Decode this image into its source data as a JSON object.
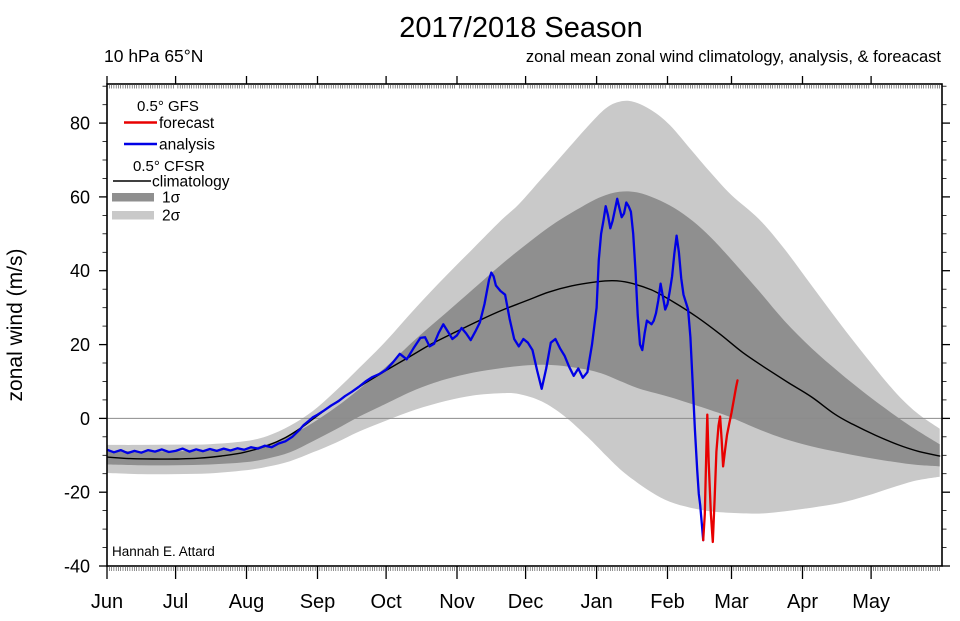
{
  "header": {
    "title": "2017/2018 Season",
    "subtitle_left": "10 hPa 65°N",
    "subtitle_right": "zonal mean zonal wind climatology, analysis, & foreacast"
  },
  "attribution": "Hannah E. Attard",
  "legend": {
    "gfs_header": "0.5° GFS",
    "forecast_label": "forecast",
    "analysis_label": "analysis",
    "cfsr_header": "0.5° CFSR",
    "climatology_label": "climatology",
    "sigma1_label": "1σ",
    "sigma2_label": "2σ"
  },
  "colors": {
    "forecast": "#e80000",
    "analysis": "#0000e6",
    "climatology": "#000000",
    "sigma1": "#8f8f8f",
    "sigma2": "#c9c9c9",
    "zero_line": "#8c8c8c",
    "frame": "#000000"
  },
  "chart_data": {
    "type": "line",
    "title": "2017/2018 Season",
    "xlabel": "",
    "ylabel": "zonal wind (m/s)",
    "x_unit": "days since Jun 1",
    "y_unit": "m/s",
    "xlim": [
      0,
      365
    ],
    "ylim": [
      -40,
      90.6
    ],
    "grid": false,
    "zero_reference_line": 0,
    "x_ticks": [
      {
        "label": "Jun",
        "day": 0
      },
      {
        "label": "Jul",
        "day": 30
      },
      {
        "label": "Aug",
        "day": 61
      },
      {
        "label": "Sep",
        "day": 92
      },
      {
        "label": "Oct",
        "day": 122
      },
      {
        "label": "Nov",
        "day": 153
      },
      {
        "label": "Dec",
        "day": 183
      },
      {
        "label": "Jan",
        "day": 214
      },
      {
        "label": "Feb",
        "day": 245
      },
      {
        "label": "Mar",
        "day": 273
      },
      {
        "label": "Apr",
        "day": 304
      },
      {
        "label": "May",
        "day": 334
      }
    ],
    "y_ticks": [
      {
        "label": "80",
        "value": 80
      },
      {
        "label": "60",
        "value": 60
      },
      {
        "label": "40",
        "value": 40
      },
      {
        "label": "20",
        "value": 20
      },
      {
        "label": "0",
        "value": 0
      },
      {
        "label": "-20",
        "value": -20
      },
      {
        "label": "-40",
        "value": -40
      }
    ],
    "y_minor_step": 5,
    "bands": [
      {
        "name": "2σ",
        "points": [
          [
            0,
            -14.8,
            -7.2
          ],
          [
            15,
            -15.1,
            -7.2
          ],
          [
            30,
            -15.1,
            -7.1
          ],
          [
            45,
            -14.9,
            -7.0
          ],
          [
            60,
            -14.1,
            -6.2
          ],
          [
            70,
            -13.1,
            -4.8
          ],
          [
            80,
            -11.6,
            -2.0
          ],
          [
            90,
            -9.2,
            2.0
          ],
          [
            100,
            -6.6,
            7.5
          ],
          [
            110,
            -3.6,
            13.5
          ],
          [
            122,
            -0.6,
            21.0
          ],
          [
            135,
            2.4,
            30.0
          ],
          [
            148,
            4.7,
            38.5
          ],
          [
            160,
            6.2,
            46.0
          ],
          [
            172,
            6.8,
            53.5
          ],
          [
            180,
            6.6,
            58.0
          ],
          [
            190,
            4.6,
            65.0
          ],
          [
            200,
            0.6,
            72.0
          ],
          [
            210,
            -5.0,
            79.0
          ],
          [
            218,
            -10.0,
            84.0
          ],
          [
            224,
            -13.6,
            85.8
          ],
          [
            230,
            -16.6,
            85.8
          ],
          [
            238,
            -20.0,
            83.5
          ],
          [
            246,
            -22.6,
            79.5
          ],
          [
            255,
            -24.2,
            73.0
          ],
          [
            264,
            -25.2,
            66.5
          ],
          [
            273,
            -25.6,
            60.5
          ],
          [
            285,
            -25.8,
            54.0
          ],
          [
            296,
            -25.2,
            46.0
          ],
          [
            308,
            -24.2,
            36.0
          ],
          [
            320,
            -23.0,
            26.0
          ],
          [
            332,
            -21.0,
            16.5
          ],
          [
            344,
            -18.6,
            7.5
          ],
          [
            354,
            -16.8,
            1.5
          ],
          [
            364,
            -15.8,
            -2.8
          ]
        ]
      },
      {
        "name": "1σ",
        "points": [
          [
            0,
            -12.5,
            -8.8
          ],
          [
            15,
            -12.7,
            -8.9
          ],
          [
            30,
            -12.7,
            -8.9
          ],
          [
            45,
            -12.5,
            -8.7
          ],
          [
            60,
            -11.9,
            -8.2
          ],
          [
            70,
            -10.9,
            -7.0
          ],
          [
            80,
            -9.2,
            -4.6
          ],
          [
            90,
            -6.2,
            -1.2
          ],
          [
            100,
            -3.0,
            3.0
          ],
          [
            110,
            0.4,
            7.8
          ],
          [
            122,
            4.0,
            14.0
          ],
          [
            135,
            7.8,
            21.5
          ],
          [
            148,
            10.6,
            28.5
          ],
          [
            160,
            12.4,
            35.0
          ],
          [
            172,
            13.6,
            41.5
          ],
          [
            184,
            14.4,
            47.5
          ],
          [
            196,
            14.4,
            53.0
          ],
          [
            208,
            13.4,
            57.5
          ],
          [
            216,
            12.2,
            60.0
          ],
          [
            224,
            10.2,
            61.4
          ],
          [
            232,
            8.2,
            61.2
          ],
          [
            240,
            6.8,
            59.5
          ],
          [
            248,
            5.4,
            57.0
          ],
          [
            256,
            3.8,
            53.5
          ],
          [
            264,
            2.2,
            49.0
          ],
          [
            273,
            0.2,
            43.0
          ],
          [
            285,
            -3.0,
            34.5
          ],
          [
            296,
            -5.5,
            26.5
          ],
          [
            308,
            -7.6,
            19.0
          ],
          [
            320,
            -9.2,
            12.5
          ],
          [
            332,
            -10.6,
            6.5
          ],
          [
            344,
            -11.8,
            1.0
          ],
          [
            354,
            -12.6,
            -3.2
          ],
          [
            364,
            -13.0,
            -7.0
          ]
        ]
      }
    ],
    "series": [
      {
        "name": "climatology",
        "source": "0.5° CFSR",
        "style": "smooth",
        "points": [
          [
            0,
            -10.5
          ],
          [
            10,
            -10.9
          ],
          [
            20,
            -11.0
          ],
          [
            30,
            -11.0
          ],
          [
            40,
            -10.8
          ],
          [
            50,
            -10.2
          ],
          [
            60,
            -9.2
          ],
          [
            70,
            -7.4
          ],
          [
            78,
            -5.2
          ],
          [
            85,
            -2.5
          ],
          [
            90,
            -0.2
          ],
          [
            97,
            3.0
          ],
          [
            105,
            6.4
          ],
          [
            113,
            9.6
          ],
          [
            122,
            13.0
          ],
          [
            132,
            16.6
          ],
          [
            142,
            20.2
          ],
          [
            153,
            23.6
          ],
          [
            163,
            26.6
          ],
          [
            173,
            29.4
          ],
          [
            183,
            31.8
          ],
          [
            193,
            34.2
          ],
          [
            203,
            35.9
          ],
          [
            214,
            37.0
          ],
          [
            221,
            37.3
          ],
          [
            228,
            36.8
          ],
          [
            238,
            34.8
          ],
          [
            248,
            31.4
          ],
          [
            258,
            27.4
          ],
          [
            268,
            22.8
          ],
          [
            278,
            17.8
          ],
          [
            288,
            13.6
          ],
          [
            298,
            9.6
          ],
          [
            308,
            5.8
          ],
          [
            318,
            1.2
          ],
          [
            326,
            -1.6
          ],
          [
            336,
            -4.6
          ],
          [
            346,
            -7.2
          ],
          [
            355,
            -9.0
          ],
          [
            364,
            -10.2
          ]
        ]
      },
      {
        "name": "analysis",
        "source": "0.5° GFS",
        "style": "jagged",
        "points": [
          [
            0,
            -8.5
          ],
          [
            3,
            -9.2
          ],
          [
            6,
            -8.6
          ],
          [
            9,
            -9.4
          ],
          [
            12,
            -8.8
          ],
          [
            15,
            -9.3
          ],
          [
            18,
            -8.6
          ],
          [
            21,
            -9.0
          ],
          [
            24,
            -8.4
          ],
          [
            27,
            -9.1
          ],
          [
            30,
            -8.8
          ],
          [
            33,
            -8.2
          ],
          [
            36,
            -9.0
          ],
          [
            39,
            -8.4
          ],
          [
            42,
            -8.9
          ],
          [
            45,
            -8.3
          ],
          [
            48,
            -8.8
          ],
          [
            51,
            -8.2
          ],
          [
            54,
            -8.7
          ],
          [
            57,
            -8.1
          ],
          [
            60,
            -8.5
          ],
          [
            63,
            -7.8
          ],
          [
            66,
            -8.2
          ],
          [
            69,
            -7.4
          ],
          [
            72,
            -7.8
          ],
          [
            75,
            -6.8
          ],
          [
            78,
            -6.2
          ],
          [
            81,
            -5.0
          ],
          [
            84,
            -3.2
          ],
          [
            86,
            -1.8
          ],
          [
            88,
            -0.8
          ],
          [
            90,
            0.3
          ],
          [
            92,
            1.0
          ],
          [
            95,
            2.2
          ],
          [
            98,
            3.5
          ],
          [
            101,
            4.6
          ],
          [
            104,
            6.0
          ],
          [
            107,
            7.2
          ],
          [
            110,
            8.5
          ],
          [
            113,
            10.0
          ],
          [
            116,
            11.2
          ],
          [
            119,
            12.0
          ],
          [
            122,
            13.2
          ],
          [
            125,
            15.2
          ],
          [
            128,
            17.5
          ],
          [
            131,
            16.0
          ],
          [
            134,
            19.0
          ],
          [
            137,
            21.8
          ],
          [
            139,
            22.0
          ],
          [
            141,
            19.5
          ],
          [
            143,
            20.2
          ],
          [
            145,
            23.2
          ],
          [
            147,
            25.5
          ],
          [
            149,
            23.5
          ],
          [
            151,
            21.5
          ],
          [
            153,
            22.5
          ],
          [
            155,
            24.5
          ],
          [
            157,
            23.0
          ],
          [
            159,
            21.2
          ],
          [
            161,
            23.5
          ],
          [
            163,
            26.0
          ],
          [
            165,
            31.0
          ],
          [
            167,
            37.5
          ],
          [
            168,
            39.5
          ],
          [
            169,
            38.5
          ],
          [
            170,
            36.0
          ],
          [
            172,
            34.5
          ],
          [
            174,
            33.5
          ],
          [
            176,
            27.0
          ],
          [
            178,
            21.5
          ],
          [
            180,
            19.5
          ],
          [
            182,
            21.5
          ],
          [
            184,
            20.5
          ],
          [
            186,
            18.5
          ],
          [
            188,
            13.0
          ],
          [
            190,
            8.0
          ],
          [
            192,
            13.5
          ],
          [
            194,
            20.5
          ],
          [
            196,
            21.5
          ],
          [
            198,
            19.0
          ],
          [
            200,
            17.0
          ],
          [
            202,
            14.0
          ],
          [
            204,
            11.5
          ],
          [
            206,
            13.5
          ],
          [
            208,
            11.0
          ],
          [
            210,
            12.5
          ],
          [
            212,
            20.0
          ],
          [
            214,
            30.0
          ],
          [
            215,
            43.0
          ],
          [
            216,
            50.0
          ],
          [
            217,
            53.5
          ],
          [
            218,
            57.5
          ],
          [
            219,
            55.0
          ],
          [
            220,
            51.5
          ],
          [
            221,
            53.5
          ],
          [
            222,
            56.5
          ],
          [
            223,
            59.5
          ],
          [
            224,
            57.0
          ],
          [
            225,
            54.5
          ],
          [
            226,
            55.5
          ],
          [
            227,
            58.5
          ],
          [
            228,
            57.5
          ],
          [
            229,
            56.0
          ],
          [
            230,
            50.0
          ],
          [
            231,
            40.0
          ],
          [
            232,
            28.0
          ],
          [
            233,
            20.0
          ],
          [
            234,
            18.5
          ],
          [
            235,
            23.0
          ],
          [
            236,
            26.5
          ],
          [
            237,
            26.0
          ],
          [
            238,
            25.5
          ],
          [
            239,
            26.5
          ],
          [
            240,
            28.5
          ],
          [
            241,
            32.0
          ],
          [
            242,
            36.5
          ],
          [
            243,
            33.0
          ],
          [
            244,
            29.5
          ],
          [
            245,
            31.0
          ],
          [
            246,
            34.5
          ],
          [
            247,
            38.5
          ],
          [
            248,
            44.5
          ],
          [
            249,
            49.5
          ],
          [
            250,
            45.0
          ],
          [
            251,
            38.0
          ],
          [
            252,
            33.5
          ],
          [
            253,
            31.5
          ],
          [
            254,
            29.5
          ],
          [
            255,
            22.0
          ],
          [
            256,
            10.0
          ],
          [
            257,
            -3.0
          ],
          [
            258,
            -14.0
          ],
          [
            258.7,
            -20.5
          ],
          [
            259.3,
            -23.5
          ],
          [
            260,
            -28.5
          ],
          [
            260.6,
            -33.0
          ]
        ]
      },
      {
        "name": "forecast",
        "source": "0.5° GFS",
        "style": "jagged",
        "points": [
          [
            260.6,
            -33.0
          ],
          [
            261.3,
            -26.0
          ],
          [
            262,
            -8.0
          ],
          [
            262.4,
            1.0
          ],
          [
            263,
            -12.0
          ],
          [
            264,
            -26.0
          ],
          [
            264.8,
            -33.5
          ],
          [
            265.6,
            -22.0
          ],
          [
            266.4,
            -9.0
          ],
          [
            267.3,
            -2.0
          ],
          [
            268.0,
            0.5
          ],
          [
            268.7,
            -6.0
          ],
          [
            269.3,
            -13.0
          ],
          [
            270.2,
            -8.5
          ],
          [
            271,
            -4.5
          ],
          [
            272,
            -1.5
          ],
          [
            273,
            1.5
          ],
          [
            274,
            5.0
          ],
          [
            275,
            8.5
          ],
          [
            275.6,
            10.3
          ]
        ]
      }
    ],
    "legend_position": "upper-left-inside"
  }
}
